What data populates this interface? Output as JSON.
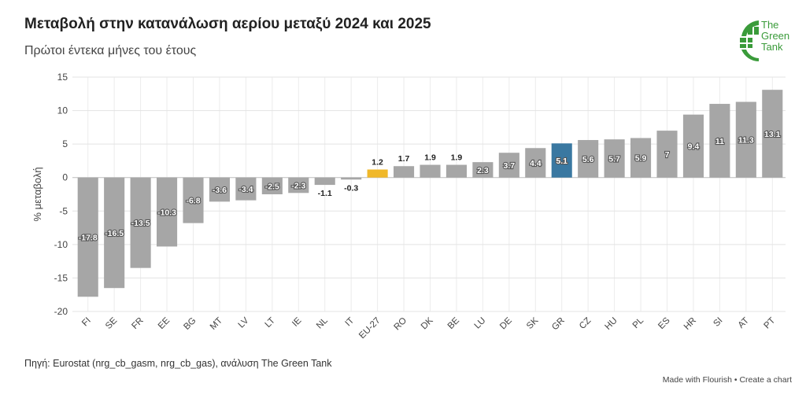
{
  "chart_data": {
    "type": "bar",
    "title": "Μεταβολή στην κατανάλωση αερίου μεταξύ 2024 και 2025",
    "subtitle": "Πρώτοι έντεκα μήνες του έτους",
    "ylabel": "% μεταβολή",
    "xlabel": "",
    "ylim": [
      -20,
      15
    ],
    "yticks": [
      15,
      10,
      5,
      0,
      -5,
      -10,
      -15,
      -20
    ],
    "categories": [
      "FI",
      "SE",
      "FR",
      "EE",
      "BG",
      "MT",
      "LV",
      "LT",
      "IE",
      "NL",
      "IT",
      "EU-27",
      "RO",
      "DK",
      "BE",
      "LU",
      "DE",
      "SK",
      "GR",
      "CZ",
      "HU",
      "PL",
      "ES",
      "HR",
      "SI",
      "AT",
      "PT"
    ],
    "values": [
      -17.8,
      -16.5,
      -13.5,
      -10.3,
      -6.8,
      -3.6,
      -3.4,
      -2.5,
      -2.3,
      -1.1,
      -0.3,
      1.2,
      1.7,
      1.9,
      1.9,
      2.3,
      3.7,
      4.4,
      5.1,
      5.6,
      5.7,
      5.9,
      7,
      9.4,
      11,
      11.3,
      13.1
    ],
    "highlights": {
      "EU-27": "#f0b82a",
      "GR": "#3a78a1"
    },
    "default_color": "#a6a6a6",
    "grid": true,
    "legend": "none"
  },
  "logo": {
    "line1": "The",
    "line2": "Green",
    "line3": "Tank",
    "color": "#3a9b3a"
  },
  "footer": {
    "source": "Πηγή: Eurostat (nrg_cb_gasm, nrg_cb_gas), ανάλυση The Green Tank",
    "made_with": "Made with Flourish",
    "separator": "•",
    "create": "Create a chart"
  }
}
